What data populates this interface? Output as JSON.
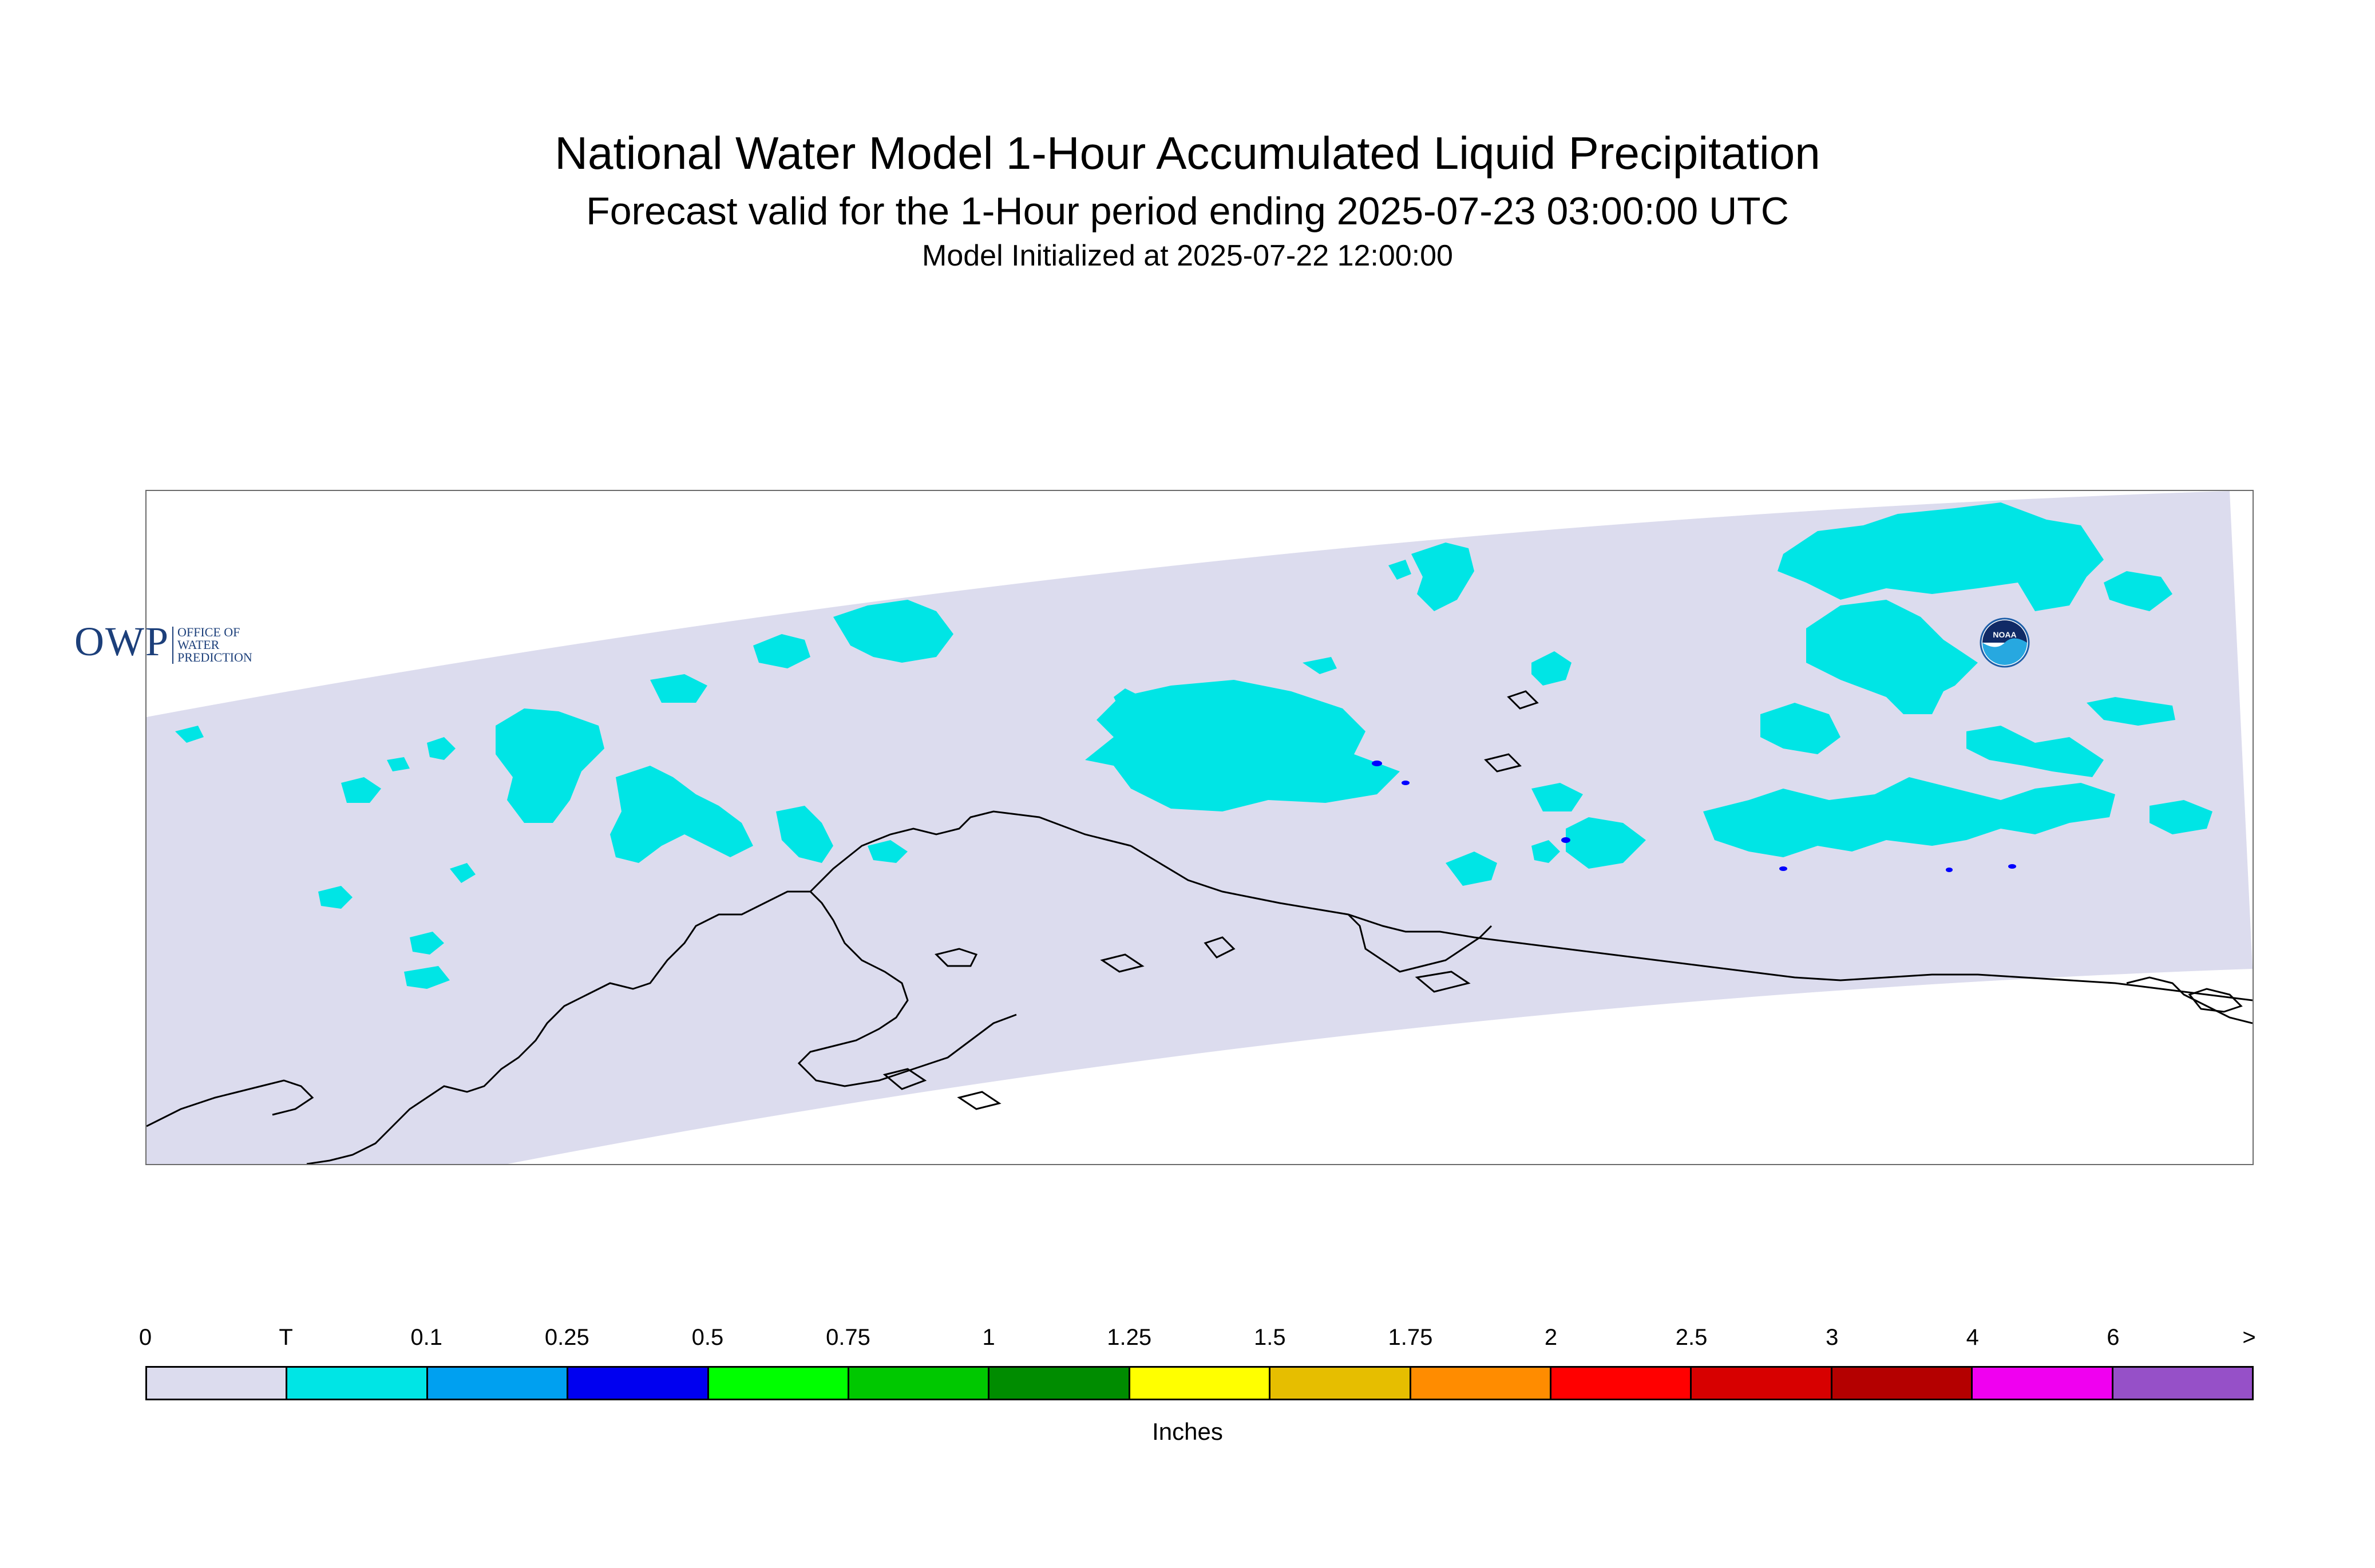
{
  "header": {
    "title": "National Water Model 1-Hour Accumulated Liquid Precipitation",
    "subtitle": "Forecast valid for the 1-Hour period ending 2025-07-23 03:00:00 UTC",
    "init_line": "Model Initialized at 2025-07-22 12:00:00"
  },
  "map": {
    "region": "Alaska",
    "domain_fill_color": "#dcdcee",
    "coastline_color": "#000000",
    "precip_trace_color": "#00e5e5",
    "precip_light_color": "#0000ff"
  },
  "logos": {
    "owp": {
      "mark": "OWP",
      "line1": "OFFICE OF",
      "line2": "WATER",
      "line3": "PREDICTION",
      "icon": "owp-logo-icon"
    },
    "noaa": {
      "mark": "NOAA",
      "icon": "noaa-logo-icon"
    }
  },
  "legend": {
    "units": "Inches",
    "boundaries": [
      "0",
      "T",
      "0.1",
      "0.25",
      "0.5",
      "0.75",
      "1",
      "1.25",
      "1.5",
      "1.75",
      "2",
      "2.5",
      "3",
      "4",
      "6",
      ">"
    ],
    "colors": [
      "#dcdcee",
      "#00e5e5",
      "#00a0f0",
      "#0000f0",
      "#00ff00",
      "#00c800",
      "#008c00",
      "#ffff00",
      "#e6be00",
      "#ff8c00",
      "#ff0000",
      "#d70000",
      "#b40000",
      "#f000f0",
      "#9650c8"
    ]
  }
}
